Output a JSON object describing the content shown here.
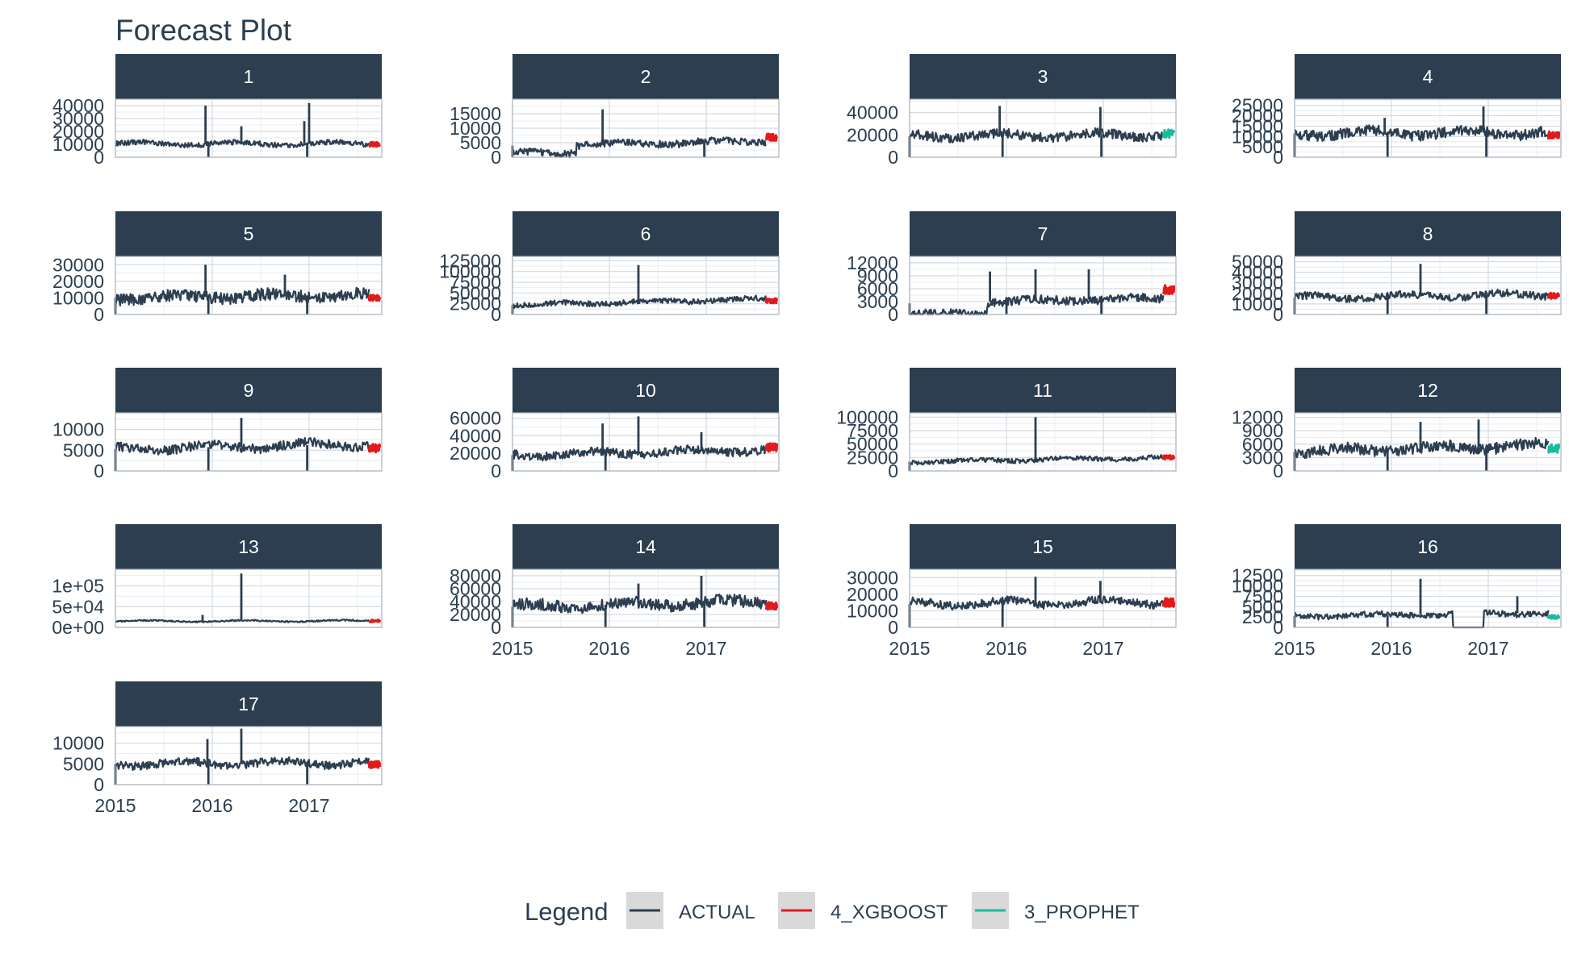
{
  "chart_data": {
    "type": "line",
    "title": "Forecast Plot",
    "x_range": [
      2015.0,
      2017.75
    ],
    "x_ticks": [
      2015,
      2016,
      2017
    ],
    "x_tick_labels": [
      "2015",
      "2016",
      "2017"
    ],
    "forecast_start": 2017.62,
    "legend": {
      "title": "Legend",
      "position": "bottom",
      "entries": [
        {
          "label": "ACTUAL",
          "color": "#2c3e50"
        },
        {
          "label": "4_XGBOOST",
          "color": "#e31a1c"
        },
        {
          "label": "3_PROPHET",
          "color": "#18bc9c"
        }
      ]
    },
    "panels": [
      {
        "id": "1",
        "ylim": [
          0,
          45000
        ],
        "y_ticks": [
          0,
          10000,
          20000,
          30000,
          40000
        ],
        "y_tick_labels": [
          "0",
          "10000",
          "20000",
          "30000",
          "40000"
        ],
        "x_axis_labels": false,
        "baseline": 10500,
        "noise": 1400,
        "trend": 0,
        "spikes": [
          [
            2015.93,
            40000
          ],
          [
            2016.3,
            24000
          ],
          [
            2016.95,
            28000
          ],
          [
            2017.0,
            42000
          ]
        ],
        "dips": [
          2015.96,
          2016.98
        ],
        "forecast_model": "4_XGBOOST",
        "forecast_level": 10000
      },
      {
        "id": "2",
        "ylim": [
          0,
          20000
        ],
        "y_ticks": [
          0,
          5000,
          10000,
          15000
        ],
        "y_tick_labels": [
          "0",
          "5000",
          "10000",
          "15000"
        ],
        "x_axis_labels": false,
        "baseline": 4000,
        "noise": 900,
        "trend": 1500,
        "spikes": [
          [
            2015.93,
            16500
          ]
        ],
        "dips": [
          2015.0,
          2016.98
        ],
        "step": [
          2015.66,
          2600
        ],
        "forecast_model": "4_XGBOOST",
        "forecast_level": 7000
      },
      {
        "id": "3",
        "ylim": [
          0,
          52000
        ],
        "y_ticks": [
          0,
          20000,
          40000
        ],
        "y_tick_labels": [
          "0",
          "20000",
          "40000"
        ],
        "x_axis_labels": false,
        "baseline": 19000,
        "noise": 3000,
        "trend": 1000,
        "spikes": [
          [
            2015.93,
            46000
          ],
          [
            2016.97,
            45000
          ]
        ],
        "dips": [
          2015.0,
          2015.96,
          2016.98
        ],
        "forecast_model": "3_PROPHET",
        "forecast_level": 21000
      },
      {
        "id": "4",
        "ylim": [
          0,
          28000
        ],
        "y_ticks": [
          0,
          5000,
          10000,
          15000,
          20000,
          25000
        ],
        "y_tick_labels": [
          "0",
          "5000",
          "10000",
          "15000",
          "20000",
          "25000"
        ],
        "x_axis_labels": false,
        "baseline": 11500,
        "noise": 1800,
        "trend": 500,
        "spikes": [
          [
            2015.93,
            19000
          ],
          [
            2016.95,
            24500
          ]
        ],
        "dips": [
          2015.0,
          2015.96,
          2016.98
        ],
        "forecast_model": "4_XGBOOST",
        "forecast_level": 10500
      },
      {
        "id": "5",
        "ylim": [
          0,
          35000
        ],
        "y_ticks": [
          0,
          10000,
          20000,
          30000
        ],
        "y_tick_labels": [
          "0",
          "10000",
          "20000",
          "30000"
        ],
        "x_axis_labels": false,
        "baseline": 10000,
        "noise": 2600,
        "trend": 2000,
        "spikes": [
          [
            2015.93,
            30000
          ],
          [
            2016.75,
            24000
          ]
        ],
        "dips": [
          2015.0,
          2015.96,
          2016.98
        ],
        "forecast_model": "4_XGBOOST",
        "forecast_level": 10000
      },
      {
        "id": "6",
        "ylim": [
          0,
          135000
        ],
        "y_ticks": [
          0,
          25000,
          50000,
          75000,
          100000,
          125000
        ],
        "y_tick_labels": [
          "0",
          "25000",
          "50000",
          "75000",
          "100000",
          "125000"
        ],
        "x_axis_labels": false,
        "baseline": 22000,
        "noise": 4500,
        "trend": 14000,
        "spikes": [
          [
            2016.3,
            115000
          ]
        ],
        "dips": [
          2015.0
        ],
        "forecast_model": "4_XGBOOST",
        "forecast_level": 32000
      },
      {
        "id": "7",
        "ylim": [
          0,
          13500
        ],
        "y_ticks": [
          0,
          3000,
          6000,
          9000,
          12000
        ],
        "y_tick_labels": [
          "0",
          "3000",
          "6000",
          "9000",
          "12000"
        ],
        "x_axis_labels": false,
        "baseline": 2600,
        "noise": 700,
        "trend": 1200,
        "spikes": [
          [
            2015.83,
            10000
          ],
          [
            2016.3,
            10500
          ],
          [
            2016.85,
            10500
          ]
        ],
        "dips": [
          2015.0,
          2016.0,
          2016.98
        ],
        "step": [
          2015.8,
          2700
        ],
        "forecast_model": "4_XGBOOST",
        "forecast_level": 5800
      },
      {
        "id": "8",
        "ylim": [
          0,
          55000
        ],
        "y_ticks": [
          0,
          10000,
          20000,
          30000,
          40000,
          50000
        ],
        "y_tick_labels": [
          "0",
          "10000",
          "20000",
          "30000",
          "40000",
          "50000"
        ],
        "x_axis_labels": false,
        "baseline": 16000,
        "noise": 2500,
        "trend": 3000,
        "spikes": [
          [
            2016.3,
            48000
          ]
        ],
        "dips": [
          2015.0,
          2015.96,
          2016.98
        ],
        "forecast_model": "4_XGBOOST",
        "forecast_level": 18000
      },
      {
        "id": "9",
        "ylim": [
          0,
          14000
        ],
        "y_ticks": [
          0,
          5000,
          10000
        ],
        "y_tick_labels": [
          "0",
          "5000",
          "10000"
        ],
        "x_axis_labels": false,
        "baseline": 5300,
        "noise": 800,
        "trend": 1200,
        "spikes": [
          [
            2016.3,
            12800
          ]
        ],
        "dips": [
          2015.0,
          2015.96,
          2016.98
        ],
        "forecast_model": "4_XGBOOST",
        "forecast_level": 5500
      },
      {
        "id": "10",
        "ylim": [
          0,
          66000
        ],
        "y_ticks": [
          0,
          20000,
          40000,
          60000
        ],
        "y_tick_labels": [
          "0",
          "20000",
          "40000",
          "60000"
        ],
        "x_axis_labels": false,
        "baseline": 18000,
        "noise": 3500,
        "trend": 6000,
        "spikes": [
          [
            2015.93,
            54000
          ],
          [
            2016.3,
            62000
          ],
          [
            2016.95,
            44000
          ]
        ],
        "dips": [
          2015.0,
          2015.96
        ],
        "forecast_model": "4_XGBOOST",
        "forecast_level": 27000
      },
      {
        "id": "11",
        "ylim": [
          0,
          108000
        ],
        "y_ticks": [
          0,
          25000,
          50000,
          75000,
          100000
        ],
        "y_tick_labels": [
          "0",
          "25000",
          "50000",
          "75000",
          "100000"
        ],
        "x_axis_labels": false,
        "baseline": 17000,
        "noise": 3000,
        "trend": 8000,
        "spikes": [
          [
            2016.3,
            100000
          ]
        ],
        "dips": [
          2015.0
        ],
        "forecast_model": "4_XGBOOST",
        "forecast_level": 25000
      },
      {
        "id": "12",
        "ylim": [
          0,
          13000
        ],
        "y_ticks": [
          0,
          3000,
          6000,
          9000,
          12000
        ],
        "y_tick_labels": [
          "0",
          "3000",
          "6000",
          "9000",
          "12000"
        ],
        "x_axis_labels": false,
        "baseline": 4300,
        "noise": 900,
        "trend": 1500,
        "spikes": [
          [
            2016.3,
            11000
          ],
          [
            2016.9,
            11500
          ]
        ],
        "dips": [
          2015.0,
          2015.96,
          2016.98
        ],
        "forecast_model": "3_PROPHET",
        "forecast_level": 5000
      },
      {
        "id": "13",
        "ylim": [
          0,
          140000
        ],
        "y_ticks": [
          0,
          50000,
          100000
        ],
        "y_tick_labels": [
          "0e+00",
          "5e+04",
          "1e+05"
        ],
        "x_axis_labels": false,
        "baseline": 15000,
        "noise": 1200,
        "trend": 500,
        "spikes": [
          [
            2015.9,
            30000
          ],
          [
            2016.3,
            130000
          ]
        ],
        "dips": [],
        "forecast_model": "4_XGBOOST",
        "forecast_level": 15500
      },
      {
        "id": "14",
        "ylim": [
          0,
          90000
        ],
        "y_ticks": [
          0,
          20000,
          40000,
          60000,
          80000
        ],
        "y_tick_labels": [
          "0",
          "20000",
          "40000",
          "60000",
          "80000"
        ],
        "x_axis_labels": true,
        "baseline": 32000,
        "noise": 6500,
        "trend": 8000,
        "spikes": [
          [
            2016.3,
            68000
          ],
          [
            2016.95,
            80000
          ]
        ],
        "dips": [
          2015.0,
          2015.96,
          2016.98
        ],
        "forecast_model": "4_XGBOOST",
        "forecast_level": 33000
      },
      {
        "id": "15",
        "ylim": [
          0,
          35000
        ],
        "y_ticks": [
          0,
          10000,
          20000,
          30000
        ],
        "y_tick_labels": [
          "0",
          "10000",
          "20000",
          "30000"
        ],
        "x_axis_labels": true,
        "baseline": 14000,
        "noise": 1800,
        "trend": 1500,
        "spikes": [
          [
            2016.3,
            30500
          ],
          [
            2016.97,
            28000
          ]
        ],
        "dips": [
          2015.0,
          2015.96
        ],
        "forecast_model": "4_XGBOOST",
        "forecast_level": 15000
      },
      {
        "id": "16",
        "ylim": [
          0,
          14000
        ],
        "y_ticks": [
          0,
          2500,
          5000,
          7500,
          10000,
          12500
        ],
        "y_tick_labels": [
          "0",
          "2500",
          "5000",
          "7500",
          "10000",
          "12500"
        ],
        "x_axis_labels": true,
        "baseline": 2700,
        "noise": 500,
        "trend": 800,
        "spikes": [
          [
            2016.3,
            11700
          ],
          [
            2017.3,
            7500
          ]
        ],
        "dips": [
          2015.0,
          2015.96
        ],
        "gap": [
          2016.63,
          2016.95
        ],
        "forecast_model": "3_PROPHET",
        "forecast_level": 2500
      },
      {
        "id": "17",
        "ylim": [
          0,
          14000
        ],
        "y_ticks": [
          0,
          5000,
          10000
        ],
        "y_tick_labels": [
          "0",
          "5000",
          "10000"
        ],
        "x_axis_labels": true,
        "baseline": 5000,
        "noise": 700,
        "trend": 300,
        "spikes": [
          [
            2015.95,
            11000
          ],
          [
            2016.3,
            13500
          ]
        ],
        "dips": [
          2015.0,
          2015.96,
          2016.98
        ],
        "forecast_model": "4_XGBOOST",
        "forecast_level": 4800
      }
    ]
  }
}
